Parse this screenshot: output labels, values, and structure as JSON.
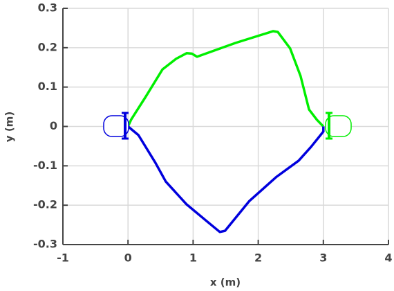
{
  "chart_data": {
    "type": "line",
    "xlabel": "x (m)",
    "ylabel": "y (m)",
    "xlim": [
      -1,
      4
    ],
    "xticks": [
      -1,
      0,
      1,
      2,
      3,
      4
    ],
    "ylim": [
      -0.3,
      0.3
    ],
    "yticks": [
      -0.3,
      -0.2,
      -0.1,
      0,
      0.1,
      0.2,
      0.3
    ],
    "grid": true,
    "series": [
      {
        "color": "#00ee00",
        "x": [
          0,
          0.05,
          0.27,
          0.53,
          0.74,
          0.9,
          0.98,
          1.06,
          1.65,
          2.23,
          2.3,
          2.49,
          2.65,
          2.78,
          2.9,
          3.0
        ],
        "values": [
          0,
          0.018,
          0.075,
          0.145,
          0.172,
          0.186,
          0.185,
          0.177,
          0.212,
          0.242,
          0.24,
          0.198,
          0.128,
          0.043,
          0.017,
          0
        ]
      },
      {
        "color": "#0000dd",
        "x": [
          0,
          0.16,
          0.42,
          0.58,
          0.9,
          1.22,
          1.41,
          1.49,
          1.86,
          2.28,
          2.62,
          2.81,
          3.0,
          3.0
        ],
        "values": [
          0,
          -0.022,
          -0.092,
          -0.14,
          -0.198,
          -0.242,
          -0.268,
          -0.265,
          -0.19,
          -0.128,
          -0.087,
          -0.052,
          -0.013,
          0
        ]
      }
    ]
  }
}
